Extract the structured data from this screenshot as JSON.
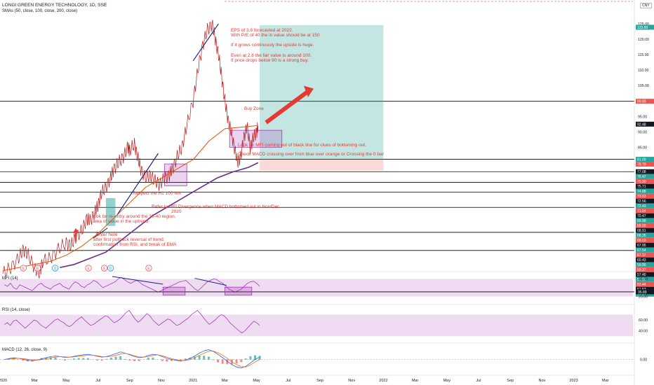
{
  "header": {
    "symbol_line": "LONGI GREEN ENERGY TECHNOLOGY, 1D, SSE",
    "sma_line": "SMAs (50, close, 100, close, 200, close)"
  },
  "currency": "CNY",
  "colors": {
    "price_line": "#b71c1c",
    "sma_fast": "#e65100",
    "sma_slow": "#6a2c91",
    "annotation": "#e53935",
    "target_zone": "#26a69a",
    "stop_zone": "#ef5350",
    "box_zone": "#9c27b0",
    "trend_line": "#1a237e",
    "indicator_line": "#9c27b0",
    "indicator_band": "#e1bee7",
    "macd_line": "#2962ff",
    "signal_line": "#ff6d00",
    "hist_pos": "#26a69a",
    "hist_neg": "#ef5350"
  },
  "annotations": {
    "eps_note": [
      "EPS of 3.8 forecasted at 2022.",
      "With P/E of 40 the in value should be at 150",
      "",
      "If it grows continously the upside is huge.",
      "",
      "Even at 2.6 the fair value is around 100.",
      "If price drops below 90 is a strong buy."
    ],
    "buy_zone": "Buy Zone",
    "mfi_note": "Look for MFI coming out of black line for clues of bottoming out.",
    "macd_note": "Check MACD crossing over from blue over orange or Crossing the 0 bar",
    "h1_note": "Respect the H1 100 MA",
    "divergence_note": [
      "Refer to MFI Divergence when MACD bottomed out in Nov/Dec",
      "2020"
    ],
    "reentry_note": [
      "look for re-entry around the 30-40 region,",
      "area of value in the uptrend"
    ],
    "enter_note": [
      "Enter here",
      "after first pullback reversal of trend,",
      "confirmation from RSI, and break of EMA"
    ]
  },
  "chart_data": [
    {
      "type": "line",
      "pane": "price",
      "x_axis": [
        "2020",
        "Mar",
        "May",
        "Jul",
        "Sep",
        "Nov",
        "2021",
        "Mar",
        "May",
        "Jul",
        "Sep",
        "Nov",
        "2022",
        "Mar",
        "May",
        "Jul",
        "Sep",
        "Nov",
        "2023",
        "Mar"
      ],
      "x_month_index": [
        0,
        2,
        4,
        6,
        8,
        10,
        12,
        14,
        16,
        18,
        20,
        22,
        24,
        26,
        28,
        30,
        32,
        34,
        36,
        38
      ],
      "y_ticks": [
        125,
        120,
        115,
        110,
        105,
        95,
        90,
        85,
        75,
        70,
        65,
        60,
        55,
        50
      ],
      "y_range": [
        46.5,
        130
      ],
      "series": [
        {
          "role": "price",
          "points": [
            [
              0,
              44
            ],
            [
              0.5,
              46
            ],
            [
              1,
              49
            ],
            [
              1.3,
              52
            ],
            [
              1.6,
              50
            ],
            [
              2,
              46
            ],
            [
              2.3,
              44
            ],
            [
              2.5,
              48
            ],
            [
              3,
              49
            ],
            [
              3.5,
              52
            ],
            [
              4,
              54
            ],
            [
              4.3,
              53
            ],
            [
              4.6,
              56
            ],
            [
              5,
              58
            ],
            [
              5.3,
              62
            ],
            [
              5.5,
              61
            ],
            [
              5.8,
              64
            ],
            [
              6,
              66
            ],
            [
              6.2,
              70
            ],
            [
              6.5,
              72
            ],
            [
              6.8,
              75
            ],
            [
              7,
              78
            ],
            [
              7.3,
              80
            ],
            [
              7.6,
              82
            ],
            [
              7.9,
              85
            ],
            [
              8,
              84
            ],
            [
              8.3,
              86
            ],
            [
              8.5,
              82
            ],
            [
              8.7,
              78
            ],
            [
              9,
              75
            ],
            [
              9.3,
              76
            ],
            [
              9.6,
              74
            ],
            [
              9.9,
              73
            ],
            [
              10.2,
              75
            ],
            [
              10.5,
              76
            ],
            [
              10.7,
              78
            ],
            [
              11,
              82
            ],
            [
              11.3,
              85
            ],
            [
              11.6,
              92
            ],
            [
              12,
              100
            ],
            [
              12.3,
              110
            ],
            [
              12.6,
              118
            ],
            [
              12.9,
              123
            ],
            [
              13.2,
              125
            ],
            [
              13.4,
              120
            ],
            [
              13.6,
              115
            ],
            [
              13.8,
              108
            ],
            [
              14,
              100
            ],
            [
              14.2,
              94
            ],
            [
              14.4,
              90
            ],
            [
              14.6,
              85
            ],
            [
              14.8,
              80
            ],
            [
              15,
              82
            ],
            [
              15.2,
              88
            ],
            [
              15.4,
              92
            ],
            [
              15.6,
              85
            ],
            [
              15.8,
              88
            ],
            [
              16,
              90
            ],
            [
              16.1,
              92
            ]
          ]
        },
        {
          "role": "sma_short",
          "points": [
            [
              0,
              45
            ],
            [
              1,
              46
            ],
            [
              2,
              47
            ],
            [
              3,
              48
            ],
            [
              4,
              50
            ],
            [
              5,
              53
            ],
            [
              6,
              57
            ],
            [
              7,
              62
            ],
            [
              8,
              67
            ],
            [
              9,
              72
            ],
            [
              10,
              75
            ],
            [
              11,
              78
            ],
            [
              12,
              81
            ],
            [
              13,
              87
            ],
            [
              14,
              91
            ],
            [
              15,
              91.5
            ],
            [
              16,
              92
            ]
          ]
        },
        {
          "role": "sma_long",
          "points": [
            [
              3.6,
              46
            ],
            [
              4.5,
              47
            ],
            [
              5.5,
              49
            ],
            [
              6.5,
              51
            ],
            [
              7.5,
              55
            ],
            [
              8.5,
              59
            ],
            [
              9.5,
              63
            ],
            [
              10.5,
              66
            ],
            [
              11.5,
              69
            ],
            [
              12.5,
              72
            ],
            [
              13.5,
              75
            ],
            [
              14.5,
              77
            ],
            [
              15.5,
              78.5
            ],
            [
              16.1,
              80
            ]
          ]
        }
      ],
      "price_labels": [
        123.89,
        99.89,
        92.48,
        81.09,
        79.79,
        77.08,
        76.47,
        75.9,
        75.71,
        74.88,
        73.63,
        72.56,
        72.43,
        71.04,
        70.47,
        69.98,
        69.92,
        68.91,
        68.35,
        68.03,
        67.95,
        67.54,
        67.37,
        60.43,
        59.86,
        59.37,
        57.4,
        53.52,
        52.44,
        51.53,
        50.87
      ],
      "horizontal_levels": [
        99.89,
        81.09,
        77.08,
        73.63,
        70.47,
        65.5,
        57.4,
        51.53
      ]
    },
    {
      "type": "line",
      "pane": "indicator",
      "name": "MFI (14)",
      "y_ticks": [
        80.0,
        20.0
      ],
      "y_range": [
        0,
        100
      ],
      "last_value": "35.89",
      "bands": [
        20,
        80
      ],
      "values": [
        60,
        55,
        65,
        50,
        45,
        60,
        55,
        50,
        45,
        40,
        50,
        60,
        65,
        55,
        50,
        45,
        55,
        60,
        65,
        55,
        50,
        45,
        60,
        70,
        65,
        55,
        50,
        60,
        65,
        75,
        70,
        60,
        50,
        55,
        60,
        65,
        70,
        80,
        85,
        78,
        70,
        65,
        70,
        75,
        68,
        60,
        55,
        50,
        45,
        40,
        35,
        40,
        45,
        50,
        55,
        60,
        65,
        70,
        72,
        75,
        65,
        55,
        45,
        40,
        50,
        60,
        70,
        75,
        80,
        78,
        70,
        65,
        55,
        45,
        40,
        35,
        40,
        45,
        55,
        65,
        70,
        72,
        65,
        55
      ]
    },
    {
      "type": "line",
      "pane": "indicator",
      "name": "RSI (14, close)",
      "y_ticks": [
        60.0,
        40.0
      ],
      "y_range": [
        20,
        85
      ],
      "values": [
        52,
        55,
        50,
        58,
        60,
        55,
        50,
        45,
        50,
        55,
        60,
        58,
        52,
        48,
        45,
        50,
        55,
        60,
        62,
        58,
        55,
        50,
        48,
        52,
        58,
        62,
        66,
        60,
        55,
        50,
        52,
        56,
        60,
        64,
        68,
        66,
        60,
        55,
        58,
        62,
        68,
        74,
        78,
        70,
        62,
        56,
        60,
        66,
        72,
        68,
        60,
        55,
        50,
        54,
        58,
        62,
        60,
        55,
        50,
        52,
        56,
        60,
        64,
        70,
        74,
        78,
        72,
        65,
        58,
        52,
        56,
        60,
        66,
        70,
        68,
        62,
        55,
        50,
        45,
        40,
        36,
        40,
        46,
        52,
        58,
        55,
        50
      ]
    },
    {
      "type": "line",
      "pane": "indicator",
      "name": "MACD (12, 26, close, 9)",
      "y_ticks": [
        0.0
      ],
      "y_range": [
        -5,
        5
      ],
      "macd": [
        0,
        0.3,
        0.6,
        0.4,
        0.1,
        -0.3,
        -0.5,
        -0.2,
        0.2,
        0.6,
        1.0,
        1.2,
        1.0,
        0.7,
        0.8,
        1.1,
        1.4,
        1.6,
        1.8,
        1.5,
        1.1,
        0.8,
        1.0,
        1.5,
        2.0,
        2.6,
        2.2,
        1.6,
        1.0,
        0.6,
        0.8,
        1.4,
        1.8,
        1.6,
        1.0,
        0.4,
        0.0,
        -0.3,
        -0.6,
        -0.2,
        0.4,
        1.2,
        2.2,
        3.0,
        3.4,
        2.8,
        1.8,
        0.6,
        -0.6,
        -1.8,
        -2.6,
        -3.0,
        -2.4,
        -1.2,
        0.0,
        0.8
      ],
      "signal": [
        0,
        0.1,
        0.3,
        0.4,
        0.3,
        0.1,
        -0.1,
        -0.2,
        -0.1,
        0.2,
        0.5,
        0.8,
        1.0,
        0.9,
        0.8,
        0.9,
        1.1,
        1.3,
        1.5,
        1.5,
        1.3,
        1.0,
        0.9,
        1.1,
        1.4,
        1.9,
        2.1,
        1.8,
        1.3,
        0.9,
        0.8,
        1.0,
        1.4,
        1.6,
        1.3,
        0.8,
        0.3,
        -0.1,
        -0.4,
        -0.4,
        0.0,
        0.6,
        1.4,
        2.2,
        2.8,
        2.9,
        2.4,
        1.5,
        0.4,
        -0.8,
        -1.8,
        -2.5,
        -2.6,
        -1.9,
        -0.9,
        0.0
      ]
    }
  ],
  "event_markers": [
    "E",
    "E",
    "D",
    "E",
    "E",
    "D",
    "E"
  ],
  "event_marker_months": [
    1.3,
    2.2,
    3.3,
    5.4,
    6.4,
    6.8,
    9.2
  ]
}
